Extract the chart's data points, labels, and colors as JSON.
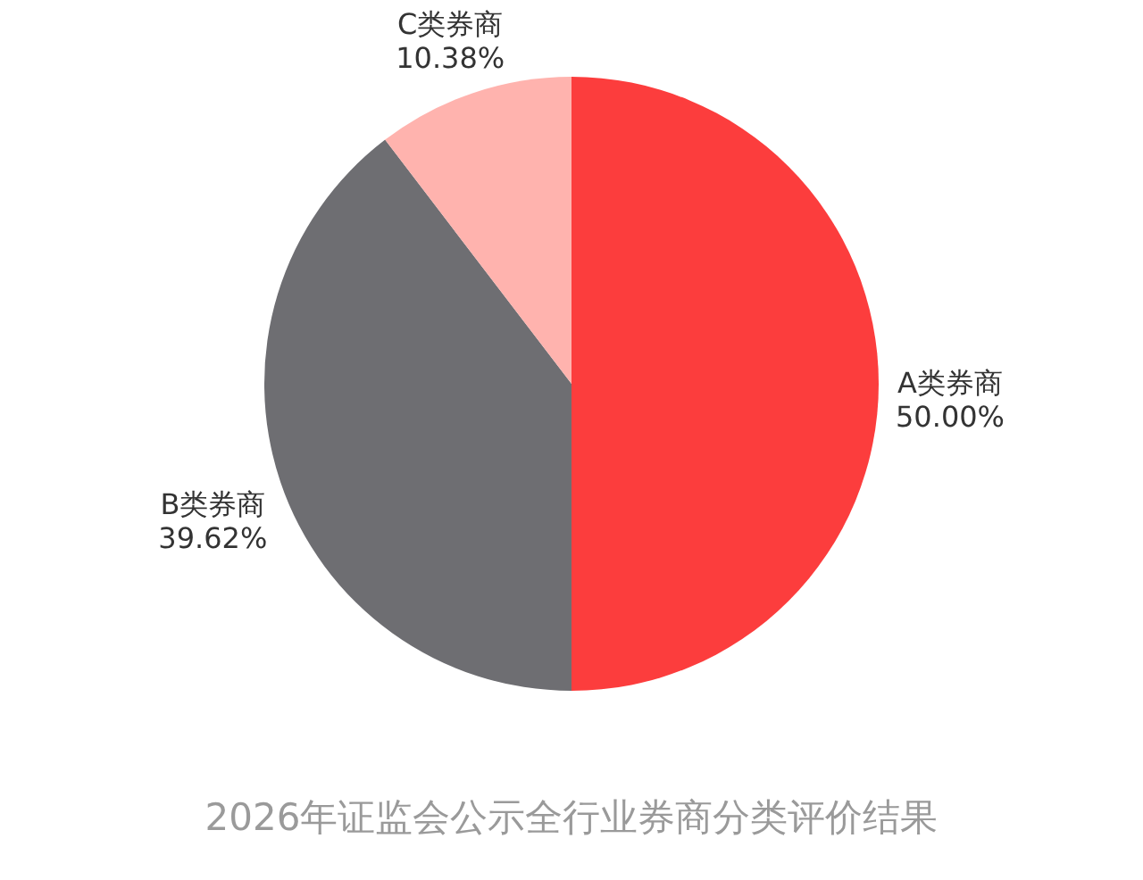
{
  "chart_data": {
    "type": "pie",
    "title": "2026年证监会公示全行业券商分类评价结果",
    "categories": [
      "A类券商",
      "B类券商",
      "C类券商"
    ],
    "values": [
      50.0,
      39.62,
      10.38
    ],
    "value_labels": [
      "50.00%",
      "39.62%",
      "10.38%"
    ],
    "colors": [
      "#fc3d3d",
      "#6e6e72",
      "#ffb3ae"
    ]
  }
}
